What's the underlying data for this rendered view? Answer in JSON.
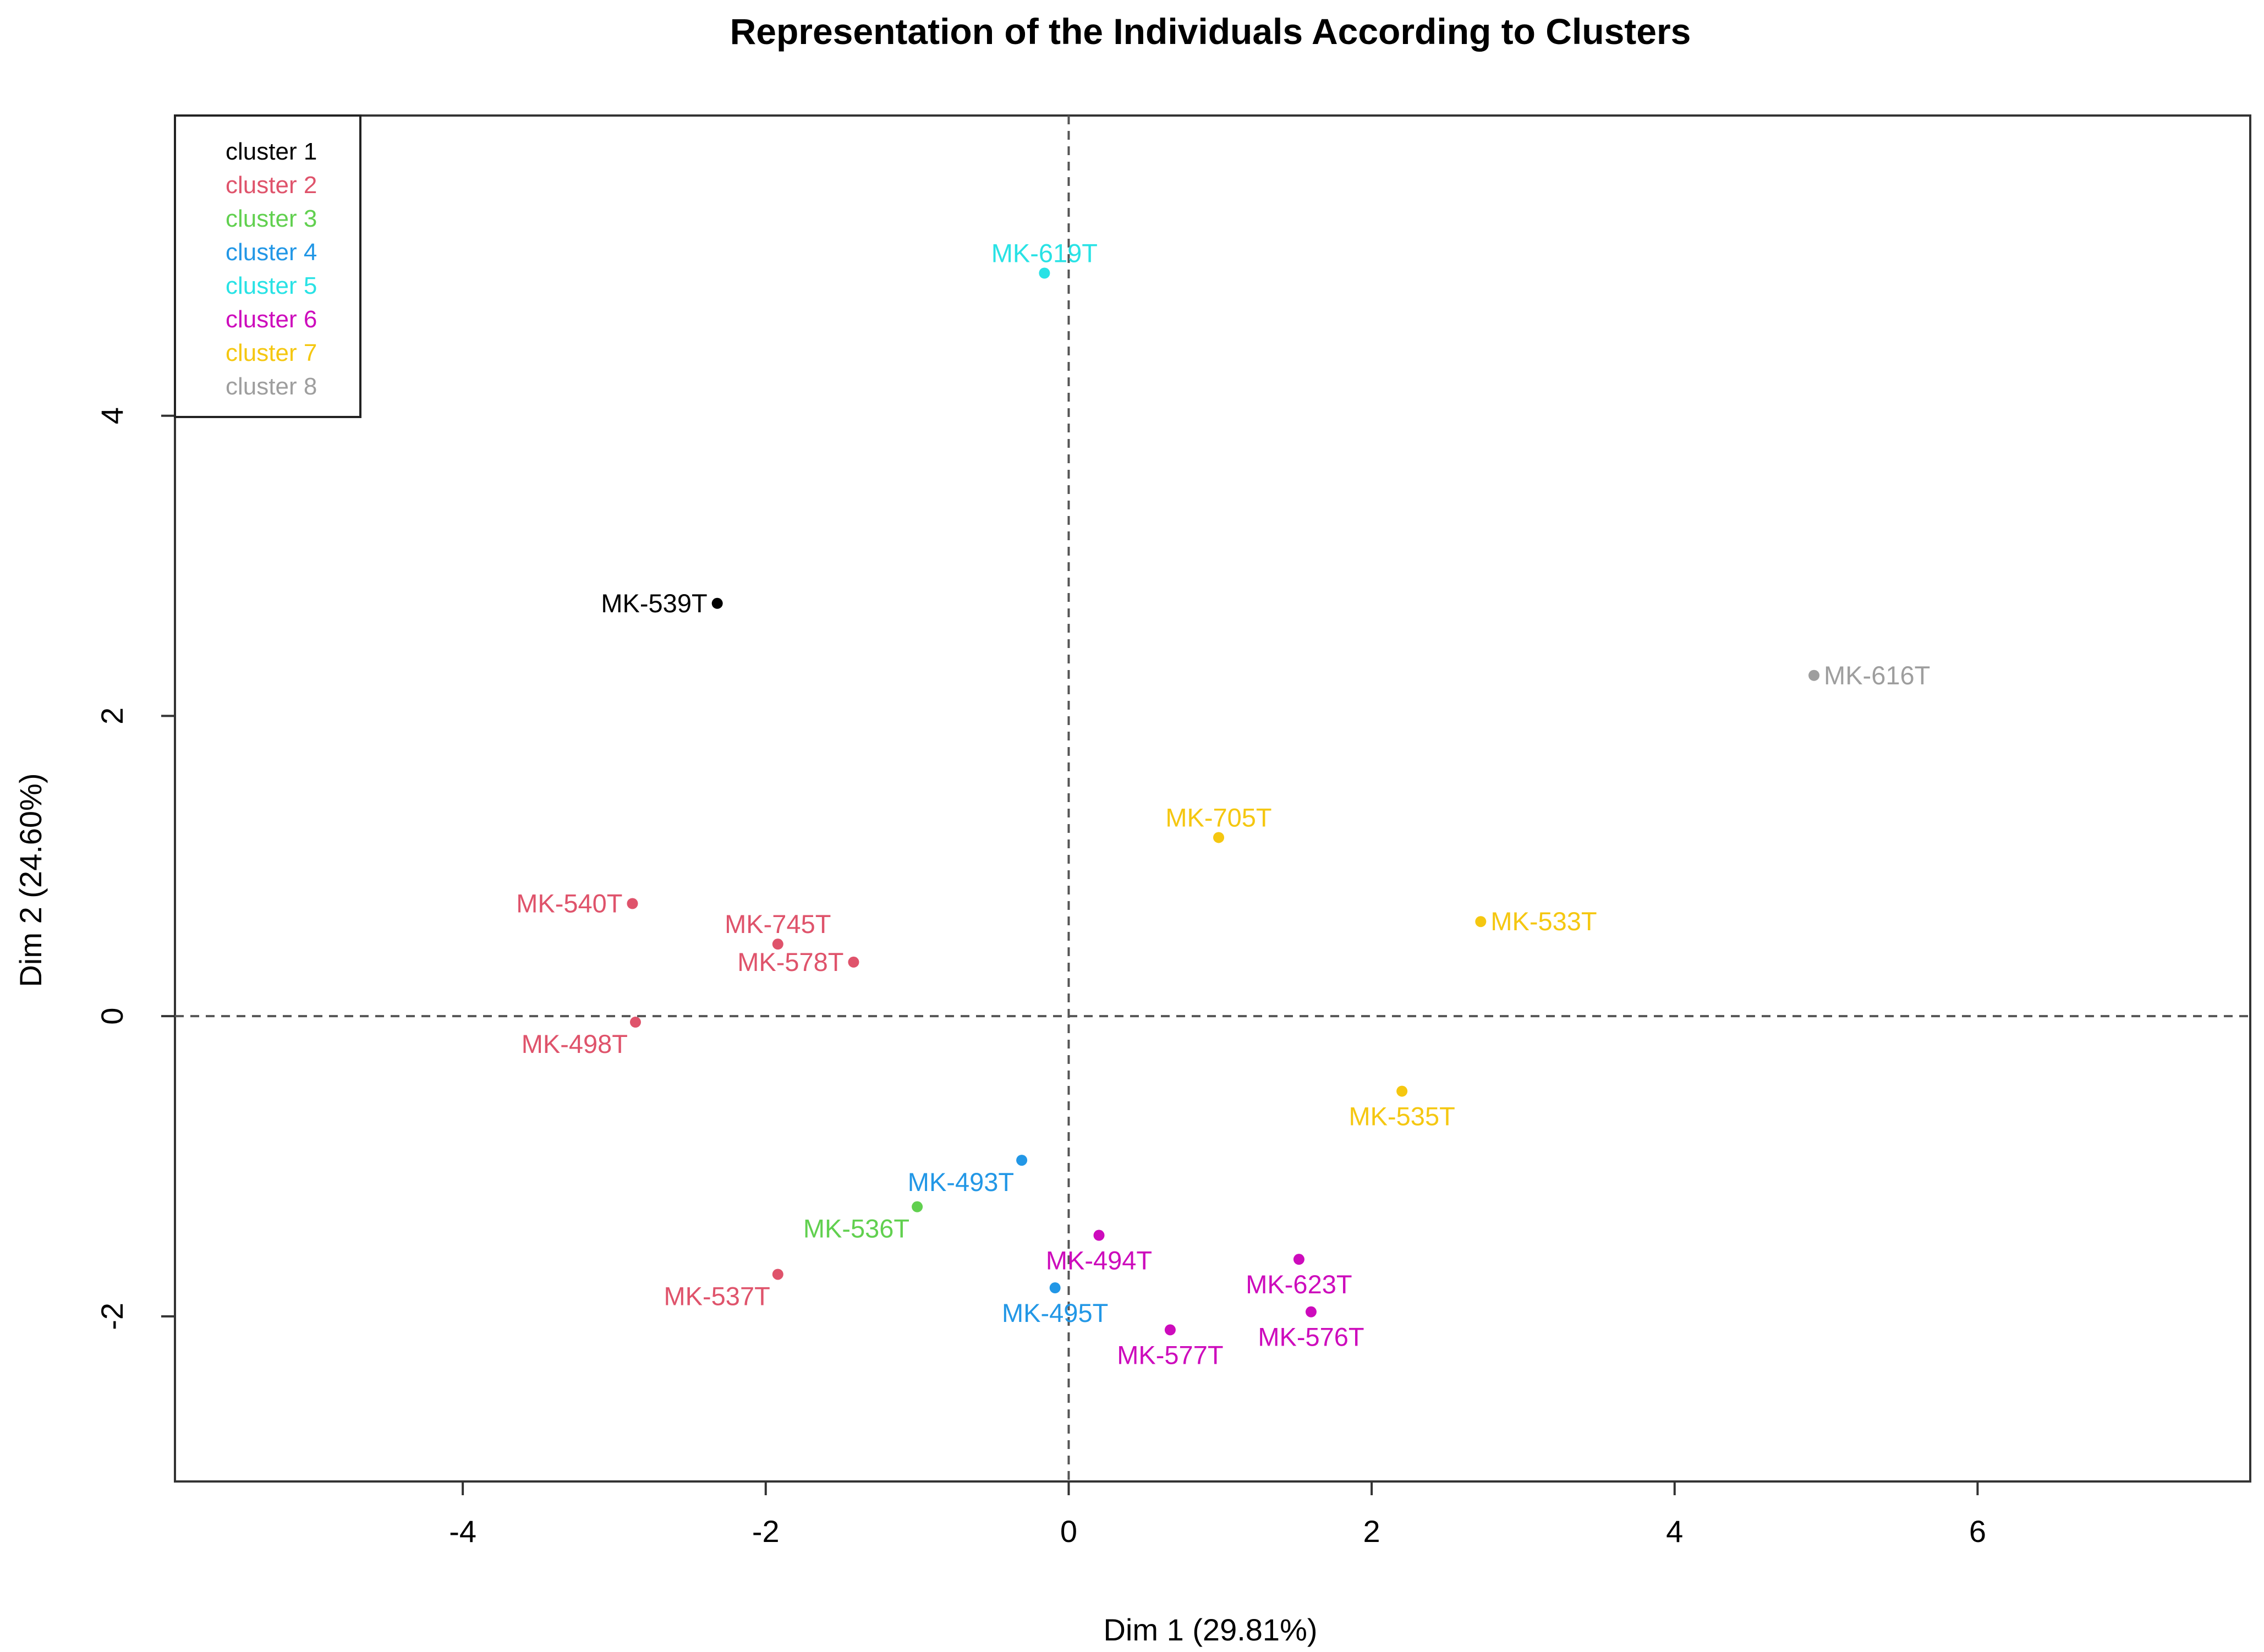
{
  "chart_data": {
    "type": "scatter",
    "title": "Representation of the Individuals According to Clusters",
    "xlabel": "Dim 1 (29.81%)",
    "ylabel": "Dim 2 (24.60%)",
    "xlim": [
      -5.9,
      7.8
    ],
    "ylim": [
      -3.1,
      6.0
    ],
    "x_ticks": [
      -4,
      -2,
      0,
      2,
      4,
      6
    ],
    "y_ticks": [
      -2,
      0,
      2,
      4
    ],
    "grid": false,
    "reference_lines": {
      "x": 0,
      "y": 0,
      "style": "dashed"
    },
    "legend_position": "top-left",
    "legend": [
      {
        "label": "cluster 1",
        "color": "#000000"
      },
      {
        "label": "cluster 2",
        "color": "#DF536B"
      },
      {
        "label": "cluster 3",
        "color": "#61D04F"
      },
      {
        "label": "cluster 4",
        "color": "#2297E6"
      },
      {
        "label": "cluster 5",
        "color": "#28E2E5"
      },
      {
        "label": "cluster 6",
        "color": "#CD0BBC"
      },
      {
        "label": "cluster 7",
        "color": "#F5C710"
      },
      {
        "label": "cluster 8",
        "color": "#9E9E9E"
      }
    ],
    "points": [
      {
        "label": "MK-539T",
        "x": -2.32,
        "y": 2.75,
        "cluster": 1,
        "label_pos": "left"
      },
      {
        "label": "MK-540T",
        "x": -2.88,
        "y": 0.75,
        "cluster": 2,
        "label_pos": "left"
      },
      {
        "label": "MK-745T",
        "x": -1.92,
        "y": 0.48,
        "cluster": 2,
        "label_pos": "above"
      },
      {
        "label": "MK-578T",
        "x": -1.42,
        "y": 0.36,
        "cluster": 2,
        "label_pos": "left"
      },
      {
        "label": "MK-498T",
        "x": -2.86,
        "y": -0.04,
        "cluster": 2,
        "label_pos": "below-left"
      },
      {
        "label": "MK-537T",
        "x": -1.92,
        "y": -1.72,
        "cluster": 2,
        "label_pos": "below-left"
      },
      {
        "label": "MK-536T",
        "x": -1.0,
        "y": -1.27,
        "cluster": 3,
        "label_pos": "below-left"
      },
      {
        "label": "MK-493T",
        "x": -0.31,
        "y": -0.96,
        "cluster": 4,
        "label_pos": "below-left"
      },
      {
        "label": "MK-495T",
        "x": -0.09,
        "y": -1.81,
        "cluster": 4,
        "label_pos": "below"
      },
      {
        "label": "MK-619T",
        "x": -0.16,
        "y": 4.95,
        "cluster": 5,
        "label_pos": "above"
      },
      {
        "label": "MK-494T",
        "x": 0.2,
        "y": -1.46,
        "cluster": 6,
        "label_pos": "below"
      },
      {
        "label": "MK-577T",
        "x": 0.67,
        "y": -2.09,
        "cluster": 6,
        "label_pos": "below"
      },
      {
        "label": "MK-623T",
        "x": 1.52,
        "y": -1.62,
        "cluster": 6,
        "label_pos": "below"
      },
      {
        "label": "MK-576T",
        "x": 1.6,
        "y": -1.97,
        "cluster": 6,
        "label_pos": "below"
      },
      {
        "label": "MK-705T",
        "x": 0.99,
        "y": 1.19,
        "cluster": 7,
        "label_pos": "above"
      },
      {
        "label": "MK-533T",
        "x": 2.72,
        "y": 0.63,
        "cluster": 7,
        "label_pos": "right"
      },
      {
        "label": "MK-535T",
        "x": 2.2,
        "y": -0.5,
        "cluster": 7,
        "label_pos": "below"
      },
      {
        "label": "MK-616T",
        "x": 4.92,
        "y": 2.27,
        "cluster": 8,
        "label_pos": "right"
      }
    ]
  }
}
